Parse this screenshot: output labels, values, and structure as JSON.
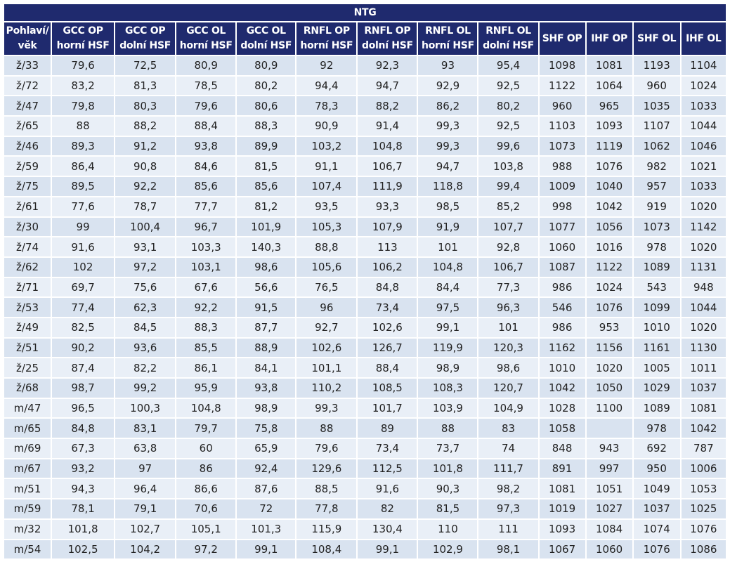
{
  "table": {
    "title": "NTG",
    "header": [
      [
        "Pohlaví/",
        "věk"
      ],
      [
        "GCC OP",
        "horní HSF"
      ],
      [
        "GCC OP",
        "dolní HSF"
      ],
      [
        "GCC OL",
        "horní HSF"
      ],
      [
        "GCC OL",
        "dolní HSF"
      ],
      [
        "RNFL OP",
        "horní HSF"
      ],
      [
        "RNFL OP",
        "dolní HSF"
      ],
      [
        "RNFL OL",
        "horní HSF"
      ],
      [
        "RNFL OL",
        "dolní HSF"
      ],
      [
        "SHF OP"
      ],
      [
        "IHF OP"
      ],
      [
        "SHF OL"
      ],
      [
        "IHF OL"
      ]
    ],
    "rows": [
      [
        "ž/33",
        "79,6",
        "72,5",
        "80,9",
        "80,9",
        "92",
        "92,3",
        "93",
        "95,4",
        "1098",
        "1081",
        "1193",
        "1104"
      ],
      [
        "ž/72",
        "83,2",
        "81,3",
        "78,5",
        "80,2",
        "94,4",
        "94,7",
        "92,9",
        "92,5",
        "1122",
        "1064",
        "960",
        "1024"
      ],
      [
        "ž/47",
        "79,8",
        "80,3",
        "79,6",
        "80,6",
        "78,3",
        "88,2",
        "86,2",
        "80,2",
        "960",
        "965",
        "1035",
        "1033"
      ],
      [
        "ž/65",
        "88",
        "88,2",
        "88,4",
        "88,3",
        "90,9",
        "91,4",
        "99,3",
        "92,5",
        "1103",
        "1093",
        "1107",
        "1044"
      ],
      [
        "ž/46",
        "89,3",
        "91,2",
        "93,8",
        "89,9",
        "103,2",
        "104,8",
        "99,3",
        "99,6",
        "1073",
        "1119",
        "1062",
        "1046"
      ],
      [
        "ž/59",
        "86,4",
        "90,8",
        "84,6",
        "81,5",
        "91,1",
        "106,7",
        "94,7",
        "103,8",
        "988",
        "1076",
        "982",
        "1021"
      ],
      [
        "ž/75",
        "89,5",
        "92,2",
        "85,6",
        "85,6",
        "107,4",
        "111,9",
        "118,8",
        "99,4",
        "1009",
        "1040",
        "957",
        "1033"
      ],
      [
        "ž/61",
        "77,6",
        "78,7",
        "77,7",
        "81,2",
        "93,5",
        "93,3",
        "98,5",
        "85,2",
        "998",
        "1042",
        "919",
        "1020"
      ],
      [
        "ž/30",
        "99",
        "100,4",
        "96,7",
        "101,9",
        "105,3",
        "107,9",
        "91,9",
        "107,7",
        "1077",
        "1056",
        "1073",
        "1142"
      ],
      [
        "ž/74",
        "91,6",
        "93,1",
        "103,3",
        "140,3",
        "88,8",
        "113",
        "101",
        "92,8",
        "1060",
        "1016",
        "978",
        "1020"
      ],
      [
        "ž/62",
        "102",
        "97,2",
        "103,1",
        "98,6",
        "105,6",
        "106,2",
        "104,8",
        "106,7",
        "1087",
        "1122",
        "1089",
        "1131"
      ],
      [
        "ž/71",
        "69,7",
        "75,6",
        "67,6",
        "56,6",
        "76,5",
        "84,8",
        "84,4",
        "77,3",
        "986",
        "1024",
        "543",
        "948"
      ],
      [
        "ž/53",
        "77,4",
        "62,3",
        "92,2",
        "91,5",
        "96",
        "73,4",
        "97,5",
        "96,3",
        "546",
        "1076",
        "1099",
        "1044"
      ],
      [
        "ž/49",
        "82,5",
        "84,5",
        "88,3",
        "87,7",
        "92,7",
        "102,6",
        "99,1",
        "101",
        "986",
        "953",
        "1010",
        "1020"
      ],
      [
        "ž/51",
        "90,2",
        "93,6",
        "85,5",
        "88,9",
        "102,6",
        "126,7",
        "119,9",
        "120,3",
        "1162",
        "1156",
        "1161",
        "1130"
      ],
      [
        "ž/25",
        "87,4",
        "82,2",
        "86,1",
        "84,1",
        "101,1",
        "88,4",
        "98,9",
        "98,6",
        "1010",
        "1020",
        "1005",
        "1011"
      ],
      [
        "ž/68",
        "98,7",
        "99,2",
        "95,9",
        "93,8",
        "110,2",
        "108,5",
        "108,3",
        "120,7",
        "1042",
        "1050",
        "1029",
        "1037"
      ],
      [
        "m/47",
        "96,5",
        "100,3",
        "104,8",
        "98,9",
        "99,3",
        "101,7",
        "103,9",
        "104,9",
        "1028",
        "1100",
        "1089",
        "1081"
      ],
      [
        "m/65",
        "84,8",
        "83,1",
        "79,7",
        "75,8",
        "88",
        "89",
        "88",
        "83",
        "1058",
        null,
        "978",
        "1042"
      ],
      [
        "m/69",
        "67,3",
        "63,8",
        "60",
        "65,9",
        "79,6",
        "73,4",
        "73,7",
        "74",
        "848",
        "943",
        "692",
        "787"
      ],
      [
        "m/67",
        "93,2",
        "97",
        "86",
        "92,4",
        "129,6",
        "112,5",
        "101,8",
        "111,7",
        "891",
        "997",
        "950",
        "1006"
      ],
      [
        "m/51",
        "94,3",
        "96,4",
        "86,6",
        "87,6",
        "88,5",
        "91,6",
        "90,3",
        "98,2",
        "1081",
        "1051",
        "1049",
        "1053"
      ],
      [
        "m/59",
        "78,1",
        "79,1",
        "70,6",
        "72",
        "77,8",
        "82",
        "81,5",
        "97,3",
        "1019",
        "1027",
        "1037",
        "1025"
      ],
      [
        "m/32",
        "101,8",
        "102,7",
        "105,1",
        "101,3",
        "115,9",
        "130,4",
        "110",
        "111",
        "1093",
        "1084",
        "1074",
        "1076"
      ],
      [
        "m/54",
        "102,5",
        "104,2",
        "97,2",
        "99,1",
        "108,4",
        "99,1",
        "102,9",
        "98,1",
        "1067",
        "1060",
        "1076",
        "1086"
      ]
    ]
  }
}
